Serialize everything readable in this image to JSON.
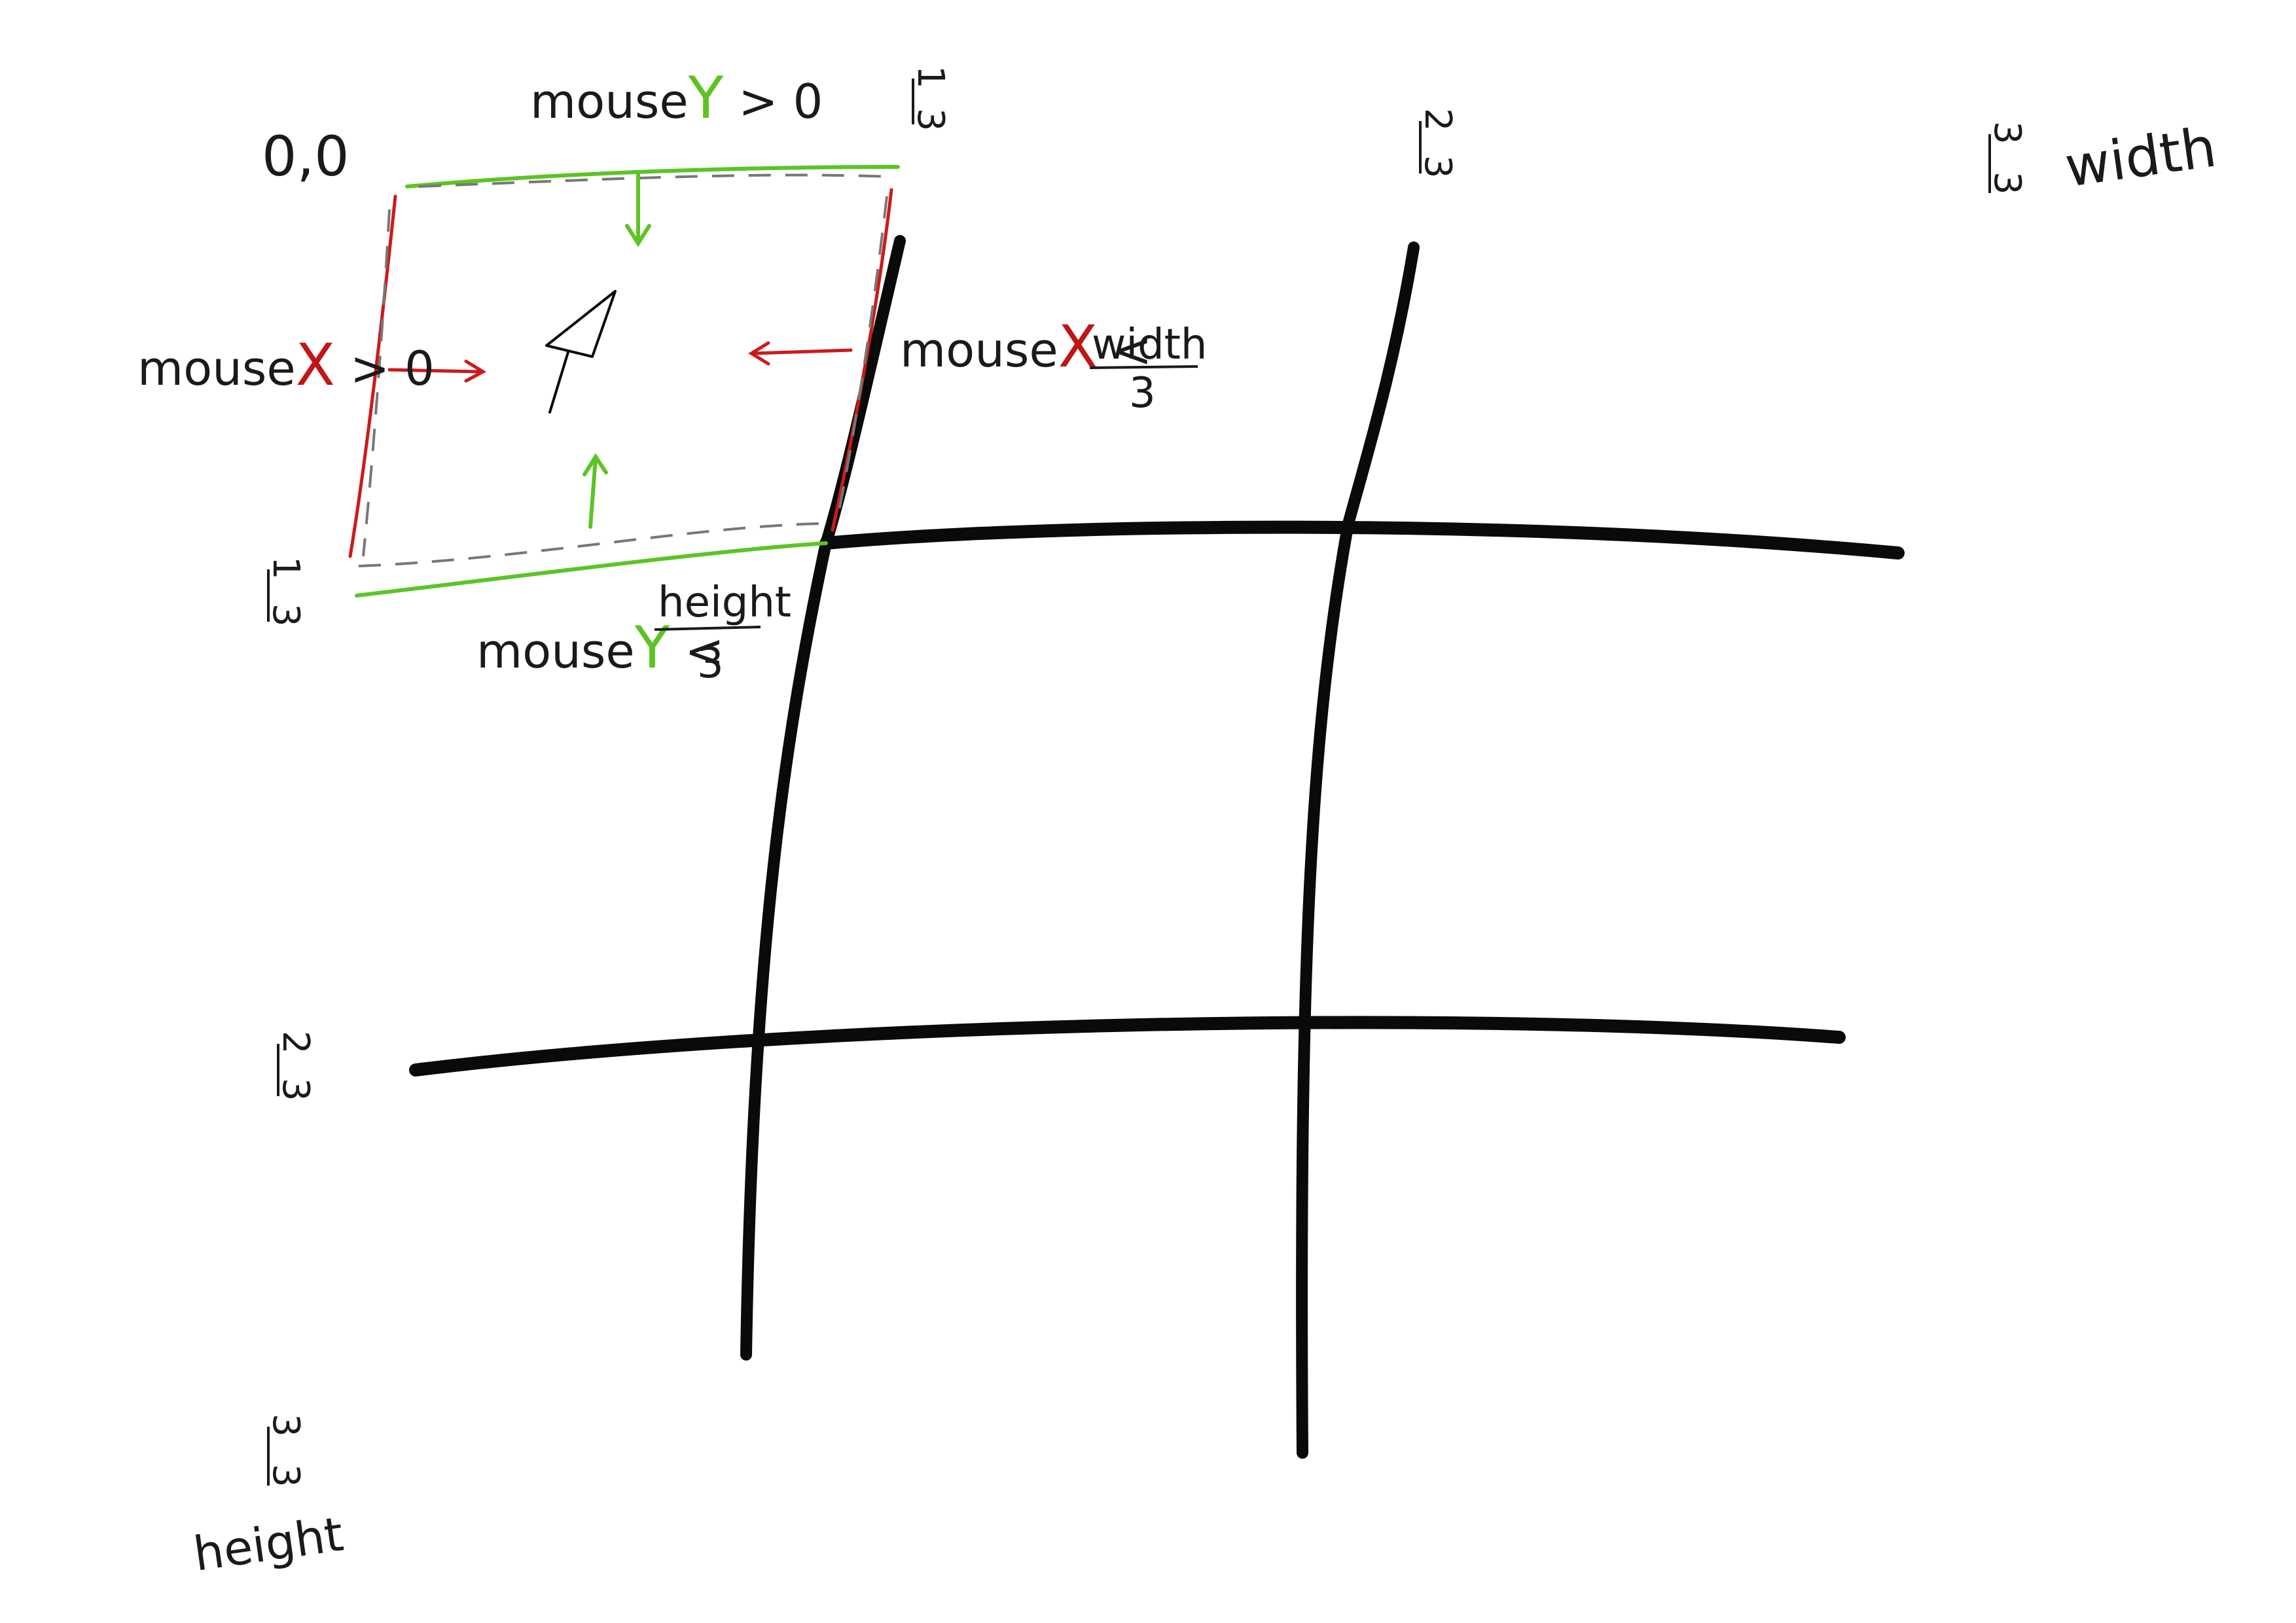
{
  "origin_label": "0,0",
  "top_condition": {
    "prefix": "mouse",
    "var": "Y",
    "suffix": " > 0"
  },
  "left_condition": {
    "prefix": "mouse",
    "var": "X",
    "suffix": " > 0"
  },
  "right_condition": {
    "prefix": "mouse",
    "var": "X",
    "op": " < ",
    "num": "width",
    "den": "3"
  },
  "bottom_condition": {
    "prefix": "mouse",
    "var": "Y",
    "op": " < ",
    "num": "height",
    "den": "3"
  },
  "top_axis": {
    "one_third": {
      "num": "1",
      "den": "3"
    },
    "two_thirds": {
      "num": "2",
      "den": "3"
    },
    "three_thirds": {
      "num": "3",
      "den": "3"
    },
    "width_label": "width"
  },
  "left_axis": {
    "one_third": {
      "num": "1",
      "den": "3"
    },
    "two_thirds": {
      "num": "2",
      "den": "3"
    },
    "three_thirds": {
      "num": "3",
      "den": "3"
    },
    "height_label": "height"
  },
  "colors": {
    "red": "#c01616",
    "green": "#5dc31f",
    "ink": "#0a0a0a"
  },
  "icons": {
    "cursor": "mouse-pointer-icon"
  }
}
